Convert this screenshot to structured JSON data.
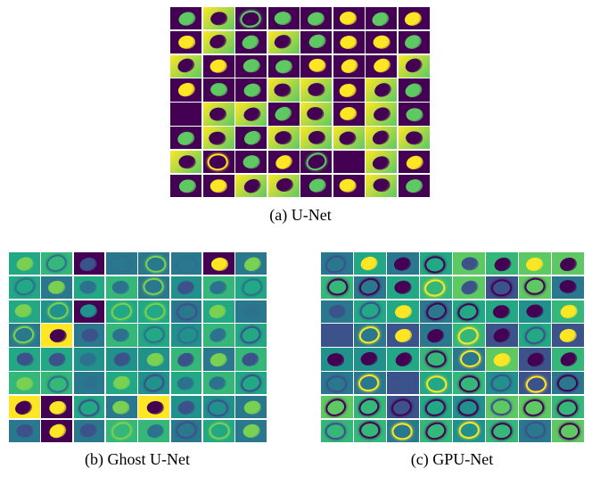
{
  "figure": {
    "panels": [
      {
        "id": "a",
        "caption": "(a) U-Net",
        "style": "unet"
      },
      {
        "id": "b",
        "caption": "(b) Ghost U-Net",
        "style": "ghost"
      },
      {
        "id": "c",
        "caption": "(c) GPU-Net",
        "style": "gpu"
      }
    ],
    "grid": {
      "rows": 8,
      "cols": 8
    },
    "colormap": {
      "dark": "#440154",
      "deep_blue": "#3b528b",
      "teal": "#21918c",
      "green": "#5ec962",
      "yellow": "#fde725"
    }
  }
}
